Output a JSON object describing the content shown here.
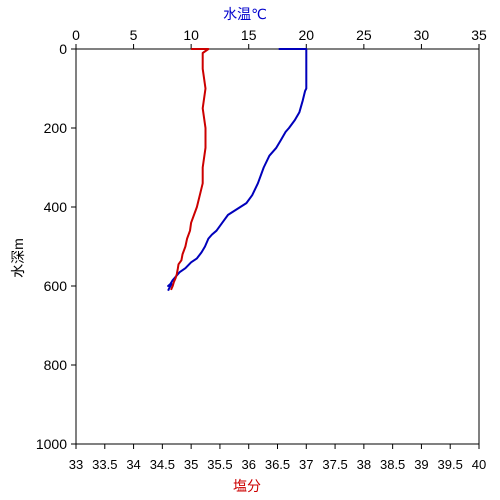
{
  "chart_data": {
    "type": "line",
    "top_axis": {
      "label": "水温℃",
      "label_color": "#0000cc",
      "range": [
        0,
        35
      ],
      "ticks": [
        0,
        5,
        10,
        15,
        20,
        25,
        30,
        35
      ]
    },
    "bottom_axis": {
      "label": "塩分",
      "label_color": "#cc0000",
      "range": [
        33,
        40
      ],
      "ticks": [
        33,
        33.5,
        34,
        34.5,
        35,
        35.5,
        36,
        36.5,
        37,
        37.5,
        38,
        38.5,
        39,
        39.5,
        40
      ]
    },
    "y_axis": {
      "label": "水深m",
      "range": [
        0,
        1000
      ],
      "inverted": true,
      "ticks": [
        0,
        200,
        400,
        600,
        800,
        1000
      ]
    },
    "grid": false,
    "series": [
      {
        "axis": "top",
        "color": "#0000bb",
        "points": [
          [
            17.6,
            0
          ],
          [
            20.0,
            0
          ],
          [
            20.0,
            50
          ],
          [
            20.0,
            100
          ],
          [
            19.9,
            106
          ],
          [
            19.7,
            130
          ],
          [
            19.4,
            160
          ],
          [
            19.0,
            180
          ],
          [
            18.5,
            200
          ],
          [
            18.2,
            210
          ],
          [
            17.8,
            230
          ],
          [
            17.4,
            250
          ],
          [
            16.8,
            270
          ],
          [
            16.3,
            300
          ],
          [
            15.8,
            340
          ],
          [
            15.3,
            370
          ],
          [
            14.8,
            390
          ],
          [
            14.0,
            405
          ],
          [
            13.2,
            420
          ],
          [
            12.7,
            440
          ],
          [
            12.2,
            460
          ],
          [
            11.8,
            470
          ],
          [
            11.5,
            480
          ],
          [
            11.2,
            500
          ],
          [
            10.9,
            515
          ],
          [
            10.5,
            530
          ],
          [
            10.0,
            540
          ],
          [
            9.5,
            555
          ],
          [
            9.0,
            565
          ],
          [
            8.7,
            575
          ],
          [
            8.4,
            585
          ],
          [
            8.2,
            595
          ],
          [
            8.0,
            600
          ],
          [
            8.3,
            595
          ],
          [
            8.1,
            605
          ],
          [
            8.0,
            612
          ]
        ]
      },
      {
        "axis": "bottom",
        "color": "#cc0000",
        "points": [
          [
            35.0,
            0
          ],
          [
            35.2,
            0
          ],
          [
            35.3,
            0
          ],
          [
            35.2,
            10
          ],
          [
            35.2,
            50
          ],
          [
            35.25,
            100
          ],
          [
            35.2,
            150
          ],
          [
            35.25,
            200
          ],
          [
            35.25,
            250
          ],
          [
            35.2,
            300
          ],
          [
            35.2,
            340
          ],
          [
            35.15,
            370
          ],
          [
            35.1,
            400
          ],
          [
            35.05,
            420
          ],
          [
            35.0,
            440
          ],
          [
            34.98,
            460
          ],
          [
            34.93,
            480
          ],
          [
            34.9,
            500
          ],
          [
            34.85,
            520
          ],
          [
            34.83,
            535
          ],
          [
            34.78,
            545
          ],
          [
            34.77,
            555
          ],
          [
            34.75,
            570
          ],
          [
            34.73,
            580
          ],
          [
            34.7,
            590
          ],
          [
            34.68,
            600
          ],
          [
            34.65,
            610
          ]
        ]
      }
    ]
  }
}
